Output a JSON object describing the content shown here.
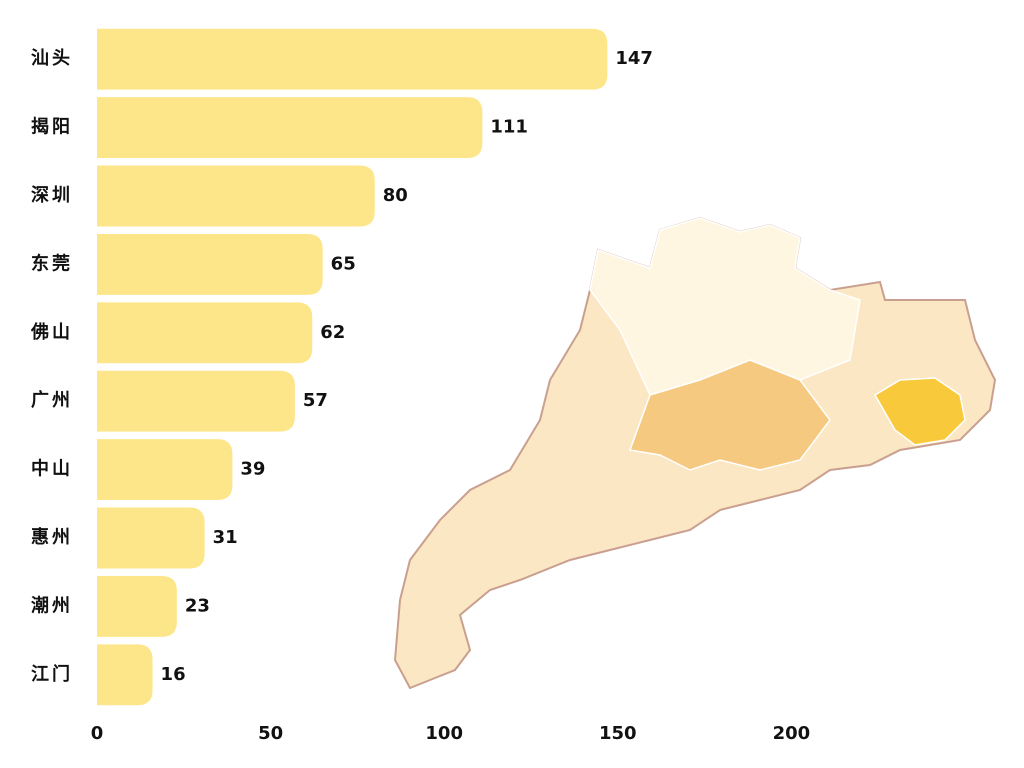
{
  "chart_data": {
    "type": "bar",
    "orientation": "horizontal",
    "categories": [
      "汕头",
      "揭阳",
      "深圳",
      "东莞",
      "佛山",
      "广州",
      "中山",
      "惠州",
      "潮州",
      "江门"
    ],
    "values": [
      147,
      111,
      80,
      65,
      62,
      57,
      39,
      31,
      23,
      16
    ],
    "color": "#fde68a",
    "xlim": [
      0,
      267
    ],
    "xticks": [
      0,
      50,
      100,
      150,
      200
    ],
    "grid": false
  }
}
